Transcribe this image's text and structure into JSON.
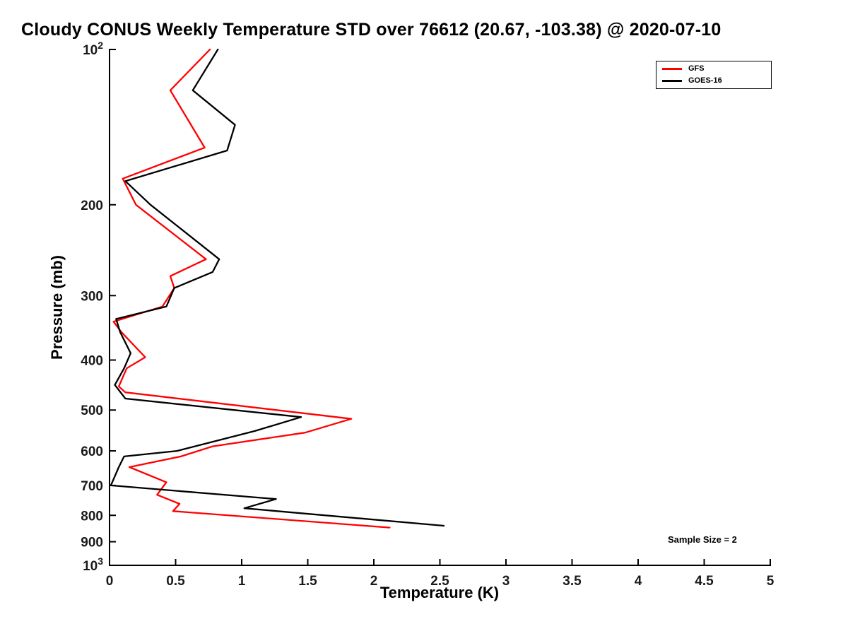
{
  "chart_data": {
    "type": "line",
    "title": "Cloudy CONUS Weekly Temperature STD over 76612 (20.67, -103.38) @ 2020-07-10",
    "xlabel": "Temperature (K)",
    "ylabel": "Pressure (mb)",
    "xlim": [
      0,
      5
    ],
    "ylim": [
      100,
      1000
    ],
    "y_scale": "log",
    "y_axis_direction": "increasing-downward",
    "grid": false,
    "legend_position": "top-right",
    "annotation": "Sample Size = 2",
    "x_ticks": [
      {
        "v": 0,
        "label": "0"
      },
      {
        "v": 0.5,
        "label": "0.5"
      },
      {
        "v": 1,
        "label": "1"
      },
      {
        "v": 1.5,
        "label": "1.5"
      },
      {
        "v": 2,
        "label": "2"
      },
      {
        "v": 2.5,
        "label": "2.5"
      },
      {
        "v": 3,
        "label": "3"
      },
      {
        "v": 3.5,
        "label": "3.5"
      },
      {
        "v": 4,
        "label": "4"
      },
      {
        "v": 4.5,
        "label": "4.5"
      },
      {
        "v": 5,
        "label": "5"
      }
    ],
    "y_ticks": [
      {
        "v": 100,
        "label": "10^2"
      },
      {
        "v": 200,
        "label": "200"
      },
      {
        "v": 300,
        "label": "300"
      },
      {
        "v": 400,
        "label": "400"
      },
      {
        "v": 500,
        "label": "500"
      },
      {
        "v": 600,
        "label": "600"
      },
      {
        "v": 700,
        "label": "700"
      },
      {
        "v": 800,
        "label": "800"
      },
      {
        "v": 900,
        "label": "900"
      },
      {
        "v": 1000,
        "label": "10^3"
      }
    ],
    "series": [
      {
        "name": "GFS",
        "color": "#ff0000",
        "pressure": [
          100,
          120,
          155,
          178,
          200,
          255,
          275,
          290,
          315,
          337,
          353,
          395,
          415,
          450,
          462,
          520,
          553,
          588,
          615,
          645,
          690,
          730,
          760,
          785,
          845
        ],
        "temperature": [
          0.76,
          0.46,
          0.72,
          0.1,
          0.2,
          0.73,
          0.46,
          0.49,
          0.4,
          0.03,
          0.09,
          0.27,
          0.13,
          0.07,
          0.12,
          1.83,
          1.48,
          0.78,
          0.54,
          0.15,
          0.43,
          0.36,
          0.53,
          0.48,
          2.12
        ]
      },
      {
        "name": "GOES-16",
        "color": "#000000",
        "pressure": [
          100,
          120,
          140,
          157,
          180,
          200,
          255,
          270,
          290,
          315,
          333,
          353,
          388,
          415,
          447,
          475,
          516,
          549,
          600,
          615,
          645,
          700,
          744,
          775,
          838
        ],
        "temperature": [
          0.82,
          0.63,
          0.95,
          0.89,
          0.12,
          0.31,
          0.83,
          0.78,
          0.49,
          0.43,
          0.05,
          0.08,
          0.16,
          0.11,
          0.04,
          0.12,
          1.45,
          1.1,
          0.51,
          0.11,
          0.07,
          0.01,
          1.26,
          1.02,
          2.53
        ]
      }
    ]
  }
}
